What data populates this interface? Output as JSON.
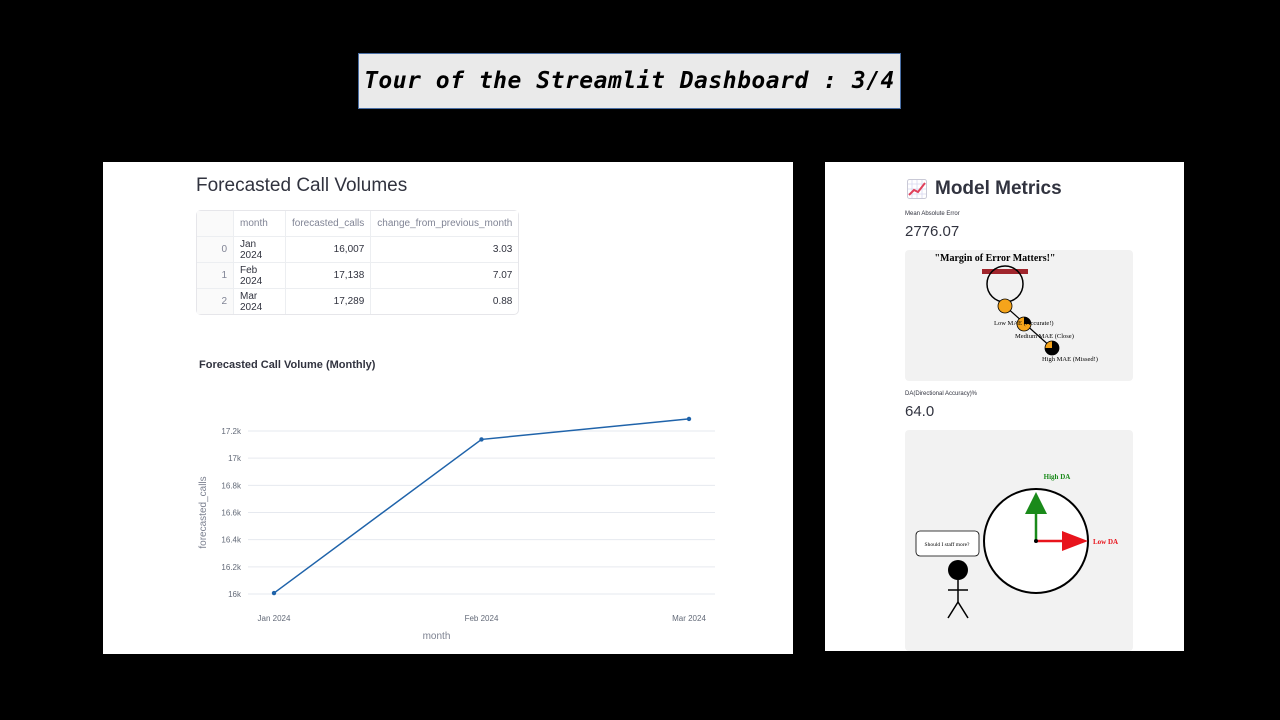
{
  "slide": {
    "title": "Tour of the Streamlit Dashboard : 3/4"
  },
  "left": {
    "heading": "Forecasted Call Volumes",
    "table": {
      "columns": [
        "month",
        "forecasted_calls",
        "change_from_previous_month"
      ],
      "rows": [
        {
          "index": "0",
          "month": "Jan 2024",
          "forecasted_calls": "16,007",
          "change": "3.03"
        },
        {
          "index": "1",
          "month": "Feb 2024",
          "forecasted_calls": "17,138",
          "change": "7.07"
        },
        {
          "index": "2",
          "month": "Mar 2024",
          "forecasted_calls": "17,289",
          "change": "0.88"
        }
      ]
    }
  },
  "chart_data": {
    "type": "line",
    "title": "Forecasted Call Volume (Monthly)",
    "xlabel": "month",
    "ylabel": "forecasted_calls",
    "categories": [
      "Jan 2024",
      "Feb 2024",
      "Mar 2024"
    ],
    "series": [
      {
        "values": [
          16007,
          17138,
          17289
        ]
      }
    ],
    "ylim": [
      16000,
      17200
    ],
    "yticks": [
      16000,
      16200,
      16400,
      16600,
      16800,
      17000,
      17200
    ],
    "ytick_labels": [
      "16k",
      "16.2k",
      "16.4k",
      "16.6k",
      "16.8k",
      "17k",
      "17.2k"
    ],
    "grid": true,
    "color": "#1f63aa"
  },
  "right": {
    "heading": "Model Metrics",
    "icon": "chart-increasing-icon",
    "mae": {
      "label": "Mean Absolute Error",
      "value": "2776.07"
    },
    "mae_image": {
      "title": "\"Margin of Error Matters!\"",
      "low": "Low MAE (Accurate!)",
      "medium": "Medium MAE (Close)",
      "high": "High MAE (Missed!)"
    },
    "da": {
      "label": "DA(Directional Accuracy)%",
      "value": "64.0"
    },
    "da_image": {
      "bubble": "Should I staff more?",
      "high": "High DA",
      "low": "Low DA"
    }
  }
}
